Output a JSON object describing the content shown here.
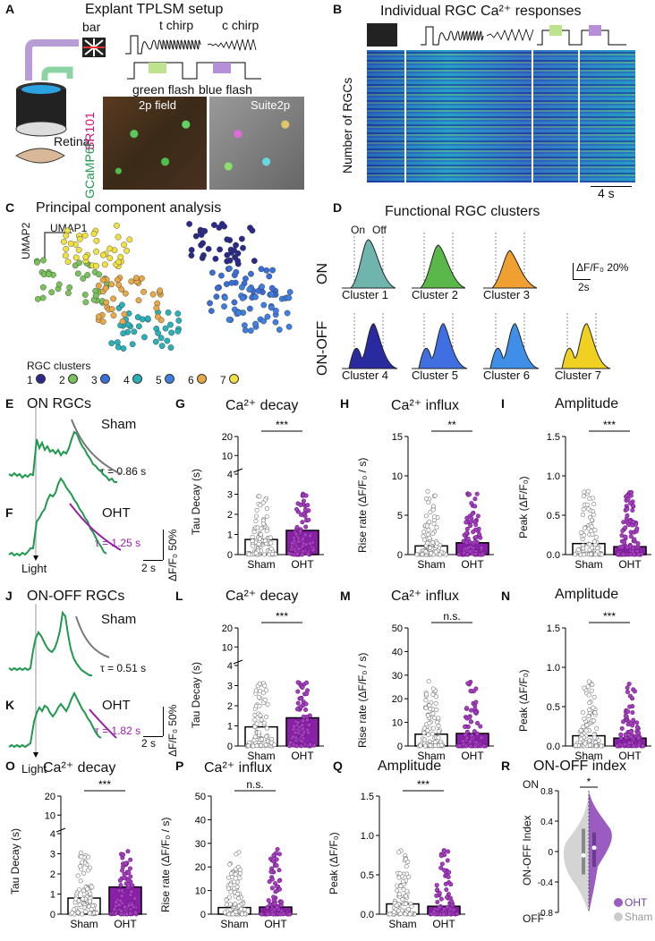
{
  "panels": {
    "A": {
      "letter": "A",
      "title": "Explant TPLSM setup",
      "stim": {
        "bar": "bar",
        "t_chirp": "t chirp",
        "c_chirp": "c chirp",
        "green_flash": "green flash",
        "blue_flash": "blue flash"
      },
      "retina": "Retina",
      "dye1": "GCaMP6f",
      "dye2": "SR101",
      "img1": "2p field",
      "img2": "Suite2p"
    },
    "B": {
      "letter": "B",
      "title": "Individual RGC Ca²⁺ responses",
      "ylabel": "Number of RGCs",
      "scale": "4 s"
    },
    "C": {
      "letter": "C",
      "title": "Principal component analysis",
      "umap1": "UMAP1",
      "umap2": "UMAP2",
      "legend_title": "RGC clusters",
      "cluster_ids": [
        "1",
        "2",
        "3",
        "4",
        "5",
        "6",
        "7"
      ]
    },
    "D": {
      "letter": "D",
      "title": "Functional RGC clusters",
      "on": "On",
      "off": "Off",
      "row_on": "ON",
      "row_onoff": "ON-OFF",
      "clusters": [
        "Cluster 1",
        "Cluster 2",
        "Cluster 3",
        "Cluster 4",
        "Cluster 5",
        "Cluster 6",
        "Cluster 7"
      ],
      "scale_y": "ΔF/F₀ 20%",
      "scale_x": "2s"
    },
    "E": {
      "letter": "E",
      "title": "ON RGCs",
      "cond": "Sham",
      "tau": "τ = 0.86 s"
    },
    "F": {
      "letter": "F",
      "cond": "OHT",
      "tau": "τ = 1.25 s",
      "light": "Light",
      "scale_x": "2 s",
      "scale_y": "ΔF/F₀ 50%"
    },
    "G": {
      "letter": "G",
      "title": "Ca²⁺ decay",
      "ylabel": "Tau Decay (s)",
      "sig": "***"
    },
    "H": {
      "letter": "H",
      "title": "Ca²⁺ influx",
      "ylabel": "Rise rate (ΔF/F₀ / s)",
      "sig": "**"
    },
    "I": {
      "letter": "I",
      "title": "Amplitude",
      "ylabel": "Peak (ΔF/F₀)",
      "sig": "***"
    },
    "J": {
      "letter": "J",
      "title": "ON-OFF RGCs",
      "cond": "Sham",
      "tau": "τ = 0.51 s"
    },
    "K": {
      "letter": "K",
      "cond": "OHT",
      "tau": "τ = 1.82 s",
      "light": "Light",
      "scale_x": "2 s",
      "scale_y": "ΔF/F₀ 50%"
    },
    "L": {
      "letter": "L",
      "title": "Ca²⁺ decay",
      "ylabel": "Tau Decay (s)",
      "sig": "***"
    },
    "M": {
      "letter": "M",
      "title": "Ca²⁺ influx",
      "ylabel": "Rise rate (ΔF/F₀ / s)",
      "sig": "n.s."
    },
    "N": {
      "letter": "N",
      "title": "Amplitude",
      "ylabel": "Peak (ΔF/F₀)",
      "sig": "***"
    },
    "O": {
      "letter": "O",
      "title": "Ca²⁺ decay",
      "ylabel": "Tau Decay (s)",
      "sig": "***"
    },
    "P": {
      "letter": "P",
      "title": "Ca²⁺ influx",
      "ylabel": "Rise rate (ΔF/F₀ / s)",
      "sig": "n.s."
    },
    "Q": {
      "letter": "Q",
      "title": "Amplitude",
      "ylabel": "Peak (ΔF/F₀)",
      "sig": "***"
    },
    "R": {
      "letter": "R",
      "title": "ON-OFF index",
      "ylabel": "ON-OFF Index",
      "top": "ON",
      "bottom": "OFF",
      "sig": "*",
      "leg_oht": "OHT",
      "leg_sham": "Sham"
    }
  },
  "groups": [
    "Sham",
    "OHT"
  ],
  "colors": {
    "sham": "#ffffff",
    "oht": "#8a1fa8",
    "violin_oht": "#9a5cc0",
    "violin_sham": "#d4d4d4",
    "trace": "#1f9a4e",
    "fit_sham": "#777777",
    "fit_oht": "#9b1fa8"
  },
  "chart_data": [
    {
      "id": "G",
      "type": "bar",
      "categories": [
        "Sham",
        "OHT"
      ],
      "values": [
        0.75,
        1.2
      ],
      "yticks_low": [
        "0",
        "1",
        "2",
        "3",
        "4"
      ],
      "yticks_high": [
        "10",
        "20"
      ],
      "ylim": [
        0,
        20
      ]
    },
    {
      "id": "H",
      "type": "bar",
      "categories": [
        "Sham",
        "OHT"
      ],
      "values": [
        1.1,
        1.5
      ],
      "yticks": [
        "0",
        "5",
        "10",
        "15"
      ],
      "ylim": [
        0,
        15
      ]
    },
    {
      "id": "I",
      "type": "bar",
      "categories": [
        "Sham",
        "OHT"
      ],
      "values": [
        0.14,
        0.1
      ],
      "yticks": [
        "0.0",
        "0.5",
        "1.0",
        "1.5"
      ],
      "ylim": [
        0,
        1.5
      ]
    },
    {
      "id": "L",
      "type": "bar",
      "categories": [
        "Sham",
        "OHT"
      ],
      "values": [
        0.95,
        1.4
      ],
      "yticks_low": [
        "0",
        "1",
        "2",
        "3",
        "4"
      ],
      "yticks_high": [
        "10",
        "20"
      ],
      "ylim": [
        0,
        20
      ]
    },
    {
      "id": "M",
      "type": "bar",
      "categories": [
        "Sham",
        "OHT"
      ],
      "values": [
        5.0,
        5.3
      ],
      "yticks": [
        "0",
        "10",
        "20",
        "30",
        "40",
        "50"
      ],
      "ylim": [
        0,
        50
      ]
    },
    {
      "id": "N",
      "type": "bar",
      "categories": [
        "Sham",
        "OHT"
      ],
      "values": [
        0.13,
        0.1
      ],
      "yticks": [
        "0.0",
        "0.5",
        "1.0",
        "1.5"
      ],
      "ylim": [
        0,
        1.5
      ]
    },
    {
      "id": "O",
      "type": "bar",
      "categories": [
        "Sham",
        "OHT"
      ],
      "values": [
        0.8,
        1.35
      ],
      "yticks_low": [
        "0",
        "1",
        "2",
        "3",
        "4"
      ],
      "yticks_high": [
        "10",
        "20"
      ],
      "ylim": [
        0,
        20
      ]
    },
    {
      "id": "P",
      "type": "bar",
      "categories": [
        "Sham",
        "OHT"
      ],
      "values": [
        2.8,
        3.0
      ],
      "yticks": [
        "0",
        "10",
        "20",
        "30",
        "40",
        "50"
      ],
      "ylim": [
        0,
        50
      ]
    },
    {
      "id": "Q",
      "type": "bar",
      "categories": [
        "Sham",
        "OHT"
      ],
      "values": [
        0.13,
        0.1
      ],
      "yticks": [
        "0.0",
        "0.5",
        "1.0",
        "1.5"
      ],
      "ylim": [
        0,
        1.5
      ]
    },
    {
      "id": "R",
      "type": "violin",
      "yticks": [
        "-0.8",
        "-0.4",
        "0",
        "0.4",
        "0.8"
      ],
      "ylim": [
        -0.8,
        0.8
      ],
      "median_oht": 0.05,
      "median_sham": -0.05
    }
  ]
}
